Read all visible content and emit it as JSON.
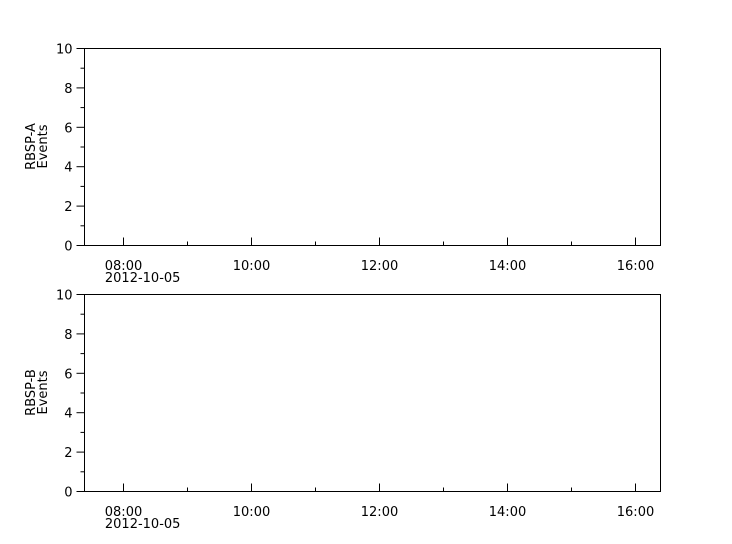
{
  "chart_data": [
    {
      "type": "line",
      "ylabel": [
        "RBSP-A",
        "Events"
      ],
      "ylim": [
        0,
        10
      ],
      "yticks": [
        "0",
        "2",
        "4",
        "6",
        "8",
        "10"
      ],
      "xlim": [
        "2012-10-05 07:24",
        "2012-10-05 16:24"
      ],
      "xticks": [
        "08:00",
        "10:00",
        "12:00",
        "14:00",
        "16:00"
      ],
      "xdate_label": "2012-10-05",
      "series": [],
      "grid": false
    },
    {
      "type": "line",
      "ylabel": [
        "RBSP-B",
        "Events"
      ],
      "ylim": [
        0,
        10
      ],
      "yticks": [
        "0",
        "2",
        "4",
        "6",
        "8",
        "10"
      ],
      "xlim": [
        "2012-10-05 07:24",
        "2012-10-05 16:24"
      ],
      "xticks": [
        "08:00",
        "10:00",
        "12:00",
        "14:00",
        "16:00"
      ],
      "xdate_label": "2012-10-05",
      "series": [],
      "grid": false
    }
  ]
}
